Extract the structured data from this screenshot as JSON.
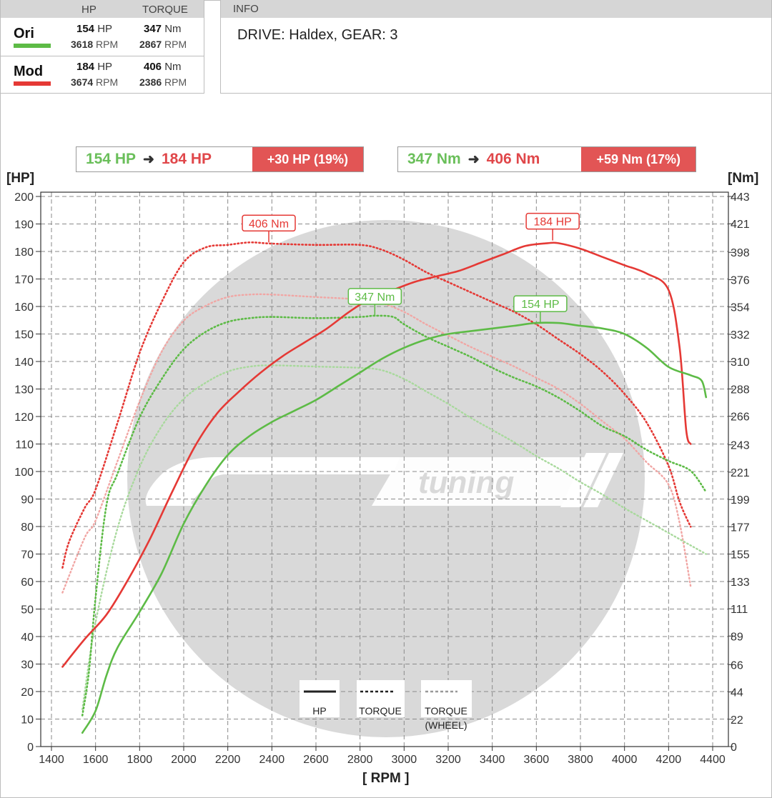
{
  "summary": {
    "col_hp": "HP",
    "col_torque": "TORQUE",
    "rows": [
      {
        "name": "Ori",
        "color": "#5dbb46",
        "hp": "154",
        "hp_unit": "HP",
        "hp_rpm": "3618",
        "tq": "347",
        "tq_unit": "Nm",
        "tq_rpm": "2867",
        "rpm_unit": "RPM"
      },
      {
        "name": "Mod",
        "color": "#e53935",
        "hp": "184",
        "hp_unit": "HP",
        "hp_rpm": "3674",
        "tq": "406",
        "tq_unit": "Nm",
        "tq_rpm": "2386",
        "rpm_unit": "RPM"
      }
    ]
  },
  "info": {
    "header": "INFO",
    "text": "DRIVE: Haldex,  GEAR: 3"
  },
  "gains": {
    "hp": {
      "from": "154 HP",
      "to": "184 HP",
      "diff": "+30 HP  (19%)"
    },
    "torque": {
      "from": "347 Nm",
      "to": "406 Nm",
      "diff": "+59 Nm  (17%)"
    }
  },
  "axes": {
    "left_unit": "[HP]",
    "right_unit": "[Nm]",
    "x_title": "[ RPM ]"
  },
  "watermark": {
    "text": "tuning"
  },
  "legend": {
    "hp": "HP",
    "torque": "TORQUE",
    "wheel_line1": "TORQUE",
    "wheel_line2": "(WHEEL)"
  },
  "colors": {
    "ori": "#5dbb46",
    "mod": "#e53935",
    "ori_light": "#a8d99c",
    "mod_light": "#f1a6a4"
  },
  "chart_data": {
    "type": "line",
    "x_label": "[ RPM ]",
    "y_left_label": "[HP]",
    "y_right_label": "[Nm]",
    "xlim": [
      1400,
      4400
    ],
    "x_ticks": [
      1400,
      1600,
      1800,
      2000,
      2200,
      2400,
      2600,
      2800,
      3000,
      3200,
      3400,
      3600,
      3800,
      4000,
      4200,
      4400
    ],
    "y_left_lim": [
      0,
      200
    ],
    "y_left_ticks": [
      0,
      10,
      20,
      30,
      40,
      50,
      60,
      70,
      80,
      90,
      100,
      110,
      120,
      130,
      140,
      150,
      160,
      170,
      180,
      190,
      200
    ],
    "y_right_lim": [
      0,
      443
    ],
    "y_right_ticks": [
      0,
      22,
      44,
      66,
      89,
      111,
      133,
      155,
      177,
      199,
      221,
      243,
      266,
      288,
      310,
      332,
      354,
      376,
      398,
      421,
      443
    ],
    "grid": true,
    "legend": [
      {
        "label": "HP",
        "style": "solid"
      },
      {
        "label": "TORQUE",
        "style": "dotted"
      },
      {
        "label": "TORQUE (WHEEL)",
        "style": "light dotted"
      }
    ],
    "series": [
      {
        "name": "Mod",
        "kind": "hp",
        "axis": "left",
        "x": [
          1450,
          1550,
          1650,
          1750,
          1850,
          1950,
          2050,
          2150,
          2250,
          2350,
          2450,
          2550,
          2650,
          2750,
          2850,
          2950,
          3050,
          3150,
          3250,
          3350,
          3450,
          3550,
          3650,
          3700,
          3800,
          3900,
          4000,
          4100,
          4200,
          4250,
          4280,
          4300
        ],
        "y": [
          29,
          39,
          48,
          61,
          76,
          93,
          109,
          121,
          129,
          136,
          142,
          147,
          152,
          158,
          163,
          166,
          169,
          171,
          173,
          176,
          179,
          182,
          183,
          183,
          181,
          178,
          175,
          172,
          166,
          145,
          115,
          110
        ]
      },
      {
        "name": "Ori",
        "kind": "hp",
        "axis": "left",
        "x": [
          1540,
          1600,
          1650,
          1700,
          1800,
          1900,
          2000,
          2100,
          2200,
          2300,
          2400,
          2500,
          2600,
          2700,
          2800,
          2900,
          3000,
          3100,
          3200,
          3300,
          3400,
          3500,
          3600,
          3700,
          3800,
          3900,
          4000,
          4100,
          4200,
          4300,
          4350,
          4370
        ],
        "y": [
          5,
          13,
          26,
          36,
          49,
          63,
          81,
          95,
          106,
          113,
          118,
          122,
          126,
          131,
          136,
          141,
          145,
          148,
          150,
          151,
          152,
          153,
          154,
          154,
          153,
          152,
          150,
          145,
          138,
          135,
          133,
          127
        ]
      },
      {
        "name": "Mod",
        "kind": "torque",
        "axis": "right",
        "x": [
          1450,
          1480,
          1550,
          1600,
          1700,
          1800,
          1900,
          2000,
          2100,
          2200,
          2300,
          2400,
          2600,
          2800,
          2900,
          3000,
          3100,
          3200,
          3300,
          3400,
          3500,
          3600,
          3700,
          3800,
          3900,
          4000,
          4100,
          4200,
          4250,
          4300
        ],
        "y": [
          144,
          165,
          192,
          207,
          261,
          317,
          358,
          390,
          402,
          404,
          406,
          405,
          404,
          404,
          400,
          392,
          382,
          374,
          366,
          358,
          350,
          340,
          328,
          316,
          302,
          284,
          261,
          226,
          197,
          177
        ]
      },
      {
        "name": "Ori",
        "kind": "torque",
        "axis": "right",
        "x": [
          1540,
          1570,
          1600,
          1650,
          1700,
          1800,
          1900,
          2000,
          2100,
          2200,
          2300,
          2400,
          2600,
          2800,
          2867,
          2950,
          3000,
          3100,
          3200,
          3300,
          3400,
          3500,
          3600,
          3700,
          3800,
          3900,
          4000,
          4100,
          4200,
          4300,
          4370
        ],
        "y": [
          25,
          60,
          120,
          195,
          220,
          265,
          296,
          320,
          334,
          342,
          345,
          346,
          345,
          346,
          347,
          346,
          340,
          330,
          322,
          314,
          305,
          297,
          290,
          281,
          270,
          258,
          250,
          239,
          230,
          222,
          205
        ]
      },
      {
        "name": "Mod",
        "kind": "wheel",
        "axis": "right",
        "x": [
          1450,
          1550,
          1600,
          1700,
          1800,
          1900,
          2000,
          2100,
          2200,
          2300,
          2400,
          2600,
          2800,
          2900,
          3000,
          3100,
          3200,
          3300,
          3400,
          3500,
          3600,
          3700,
          3800,
          3900,
          4000,
          4100,
          4200,
          4250,
          4300
        ],
        "y": [
          124,
          168,
          182,
          230,
          278,
          318,
          343,
          355,
          362,
          364,
          364,
          362,
          360,
          357,
          350,
          340,
          331,
          322,
          314,
          306,
          297,
          288,
          276,
          262,
          248,
          229,
          211,
          180,
          129
        ]
      },
      {
        "name": "Ori",
        "kind": "wheel",
        "axis": "right",
        "x": [
          1540,
          1600,
          1700,
          1800,
          1900,
          2000,
          2100,
          2200,
          2300,
          2400,
          2600,
          2800,
          2900,
          3000,
          3100,
          3200,
          3300,
          3400,
          3500,
          3600,
          3700,
          3800,
          3900,
          4000,
          4100,
          4200,
          4300,
          4370
        ],
        "y": [
          30,
          100,
          176,
          225,
          258,
          280,
          293,
          302,
          306,
          307,
          306,
          305,
          303,
          296,
          286,
          276,
          265,
          255,
          245,
          234,
          224,
          213,
          203,
          192,
          182,
          172,
          162,
          155
        ]
      }
    ],
    "peak_labels": [
      {
        "text": "406 Nm",
        "series": "Mod",
        "kind": "torque",
        "x": 2386,
        "y": 406,
        "axis": "right"
      },
      {
        "text": "184 HP",
        "series": "Mod",
        "kind": "hp",
        "x": 3674,
        "y": 184,
        "axis": "left"
      },
      {
        "text": "347 Nm",
        "series": "Ori",
        "kind": "torque",
        "x": 2867,
        "y": 347,
        "axis": "right"
      },
      {
        "text": "154 HP",
        "series": "Ori",
        "kind": "hp",
        "x": 3618,
        "y": 154,
        "axis": "left"
      }
    ]
  }
}
